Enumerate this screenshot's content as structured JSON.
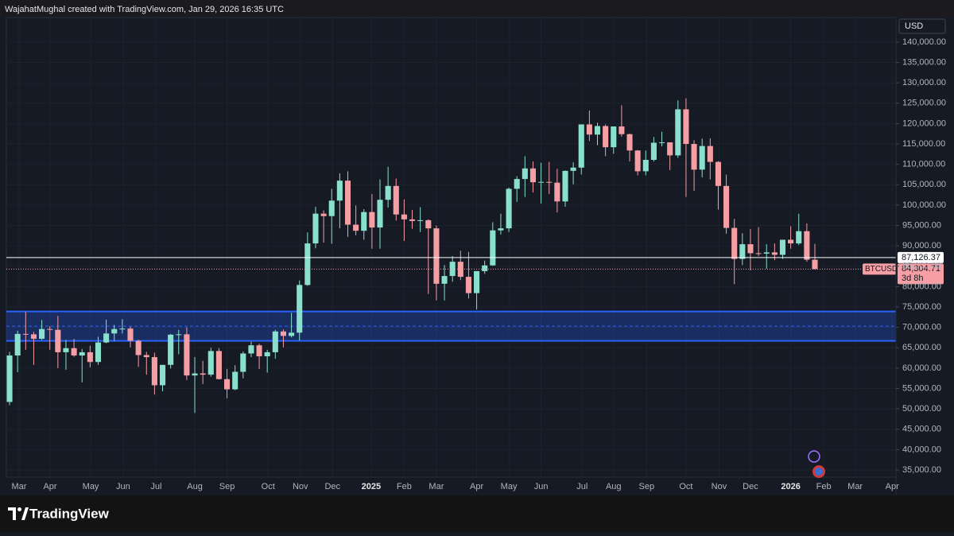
{
  "header": {
    "attribution": "WajahatMughal created with TradingView.com, Jan 29, 2026 16:35 UTC"
  },
  "footer": {
    "brand": "TradingView"
  },
  "chart_data": {
    "type": "candlestick",
    "currency": "USD",
    "up_color": "#89e0cc",
    "down_color": "#f59ea3",
    "grid": true,
    "xlim": [
      -0.4,
      110.07
    ],
    "xticks": [
      {
        "value": 1.18,
        "label": "Mar"
      },
      {
        "value": 5.03,
        "label": "Apr"
      },
      {
        "value": 10.07,
        "label": "May"
      },
      {
        "value": 14.1,
        "label": "Jun"
      },
      {
        "value": 18.2,
        "label": "Jul"
      },
      {
        "value": 23.0,
        "label": "Aug"
      },
      {
        "value": 27.0,
        "label": "Sep"
      },
      {
        "value": 32.1,
        "label": "Oct"
      },
      {
        "value": 36.1,
        "label": "Nov"
      },
      {
        "value": 40.1,
        "label": "Dec"
      },
      {
        "value": 44.9,
        "label": "2025"
      },
      {
        "value": 49.0,
        "label": "Feb"
      },
      {
        "value": 53.0,
        "label": "Mar"
      },
      {
        "value": 58.0,
        "label": "Apr"
      },
      {
        "value": 62.0,
        "label": "May"
      },
      {
        "value": 66.0,
        "label": "Jun"
      },
      {
        "value": 71.1,
        "label": "Jul"
      },
      {
        "value": 75.0,
        "label": "Aug"
      },
      {
        "value": 79.1,
        "label": "Sep"
      },
      {
        "value": 84.0,
        "label": "Oct"
      },
      {
        "value": 88.1,
        "label": "Nov"
      },
      {
        "value": 92.0,
        "label": "Dec"
      },
      {
        "value": 97.0,
        "label": "2026"
      },
      {
        "value": 101.1,
        "label": "Feb"
      },
      {
        "value": 105.0,
        "label": "Mar"
      },
      {
        "value": 109.6,
        "label": "Apr"
      }
    ],
    "ylim": [
      33250,
      146030
    ],
    "yticks": [
      {
        "value": 140000,
        "label": "140,000.00"
      },
      {
        "value": 135000,
        "label": "135,000.00"
      },
      {
        "value": 130000,
        "label": "130,000.00"
      },
      {
        "value": 125000,
        "label": "125,000.00"
      },
      {
        "value": 120000,
        "label": "120,000.00"
      },
      {
        "value": 115000,
        "label": "115,000.00"
      },
      {
        "value": 110000,
        "label": "110,000.00"
      },
      {
        "value": 105000,
        "label": "105,000.00"
      },
      {
        "value": 100000,
        "label": "100,000.00"
      },
      {
        "value": 95000,
        "label": "95,000.00"
      },
      {
        "value": 90000,
        "label": "90,000.00"
      },
      {
        "value": 85000,
        "label": "85,000.00"
      },
      {
        "value": 80000,
        "label": "80,000.00"
      },
      {
        "value": 75000,
        "label": "75,000.00"
      },
      {
        "value": 70000,
        "label": "70,000.00"
      },
      {
        "value": 65000,
        "label": "65,000.00"
      },
      {
        "value": 60000,
        "label": "60,000.00"
      },
      {
        "value": 55000,
        "label": "55,000.00"
      },
      {
        "value": 50000,
        "label": "50,000.00"
      },
      {
        "value": 45000,
        "label": "45,000.00"
      },
      {
        "value": 40000,
        "label": "40,000.00"
      },
      {
        "value": 35000,
        "label": "35,000.00"
      }
    ],
    "zones": [
      {
        "low": 66700,
        "high": 73900,
        "mid": 70300,
        "color": "#2962ff"
      }
    ],
    "price_lines": [
      {
        "value": 87126.37,
        "label": "87,126.37",
        "color": "#ffffff",
        "style": "solid"
      },
      {
        "value": 84304.71,
        "label": "84,304.71",
        "symbol": "BTCUSD",
        "countdown": "3d 8h",
        "color": "#f59ea3",
        "style": "dotted"
      }
    ],
    "open": [
      51700,
      63100,
      68400,
      68300,
      67200,
      69600,
      69400,
      63900,
      64900,
      63100,
      63900,
      61500,
      66300,
      68500,
      69600,
      69700,
      66700,
      63200,
      62700,
      55800,
      60800,
      68200,
      68300,
      58200,
      58700,
      58400,
      64200,
      57300,
      54800,
      59100,
      63600,
      65600,
      62900,
      63900,
      69000,
      67900,
      68700,
      80400,
      90600,
      97900,
      97300,
      101100,
      106000,
      95200,
      93700,
      98300,
      94500,
      101300,
      104700,
      97700,
      96500,
      96100,
      96300,
      94300,
      80700,
      82600,
      86100,
      82400,
      78400,
      83800,
      85200,
      93800,
      94300,
      104000,
      106400,
      109000,
      105600,
      105700,
      105500,
      100900,
      108400,
      109200,
      119800,
      117300,
      119400,
      114200,
      119300,
      117400,
      113400,
      108300,
      111100,
      115300,
      115400,
      112200,
      123500,
      115000,
      108700,
      114500,
      110600,
      104700,
      94400,
      86800,
      90400,
      88200,
      88100,
      88400,
      87800,
      91500,
      90600,
      93600,
      86600
    ],
    "high": [
      64000,
      69200,
      73800,
      68900,
      71800,
      70300,
      72800,
      66900,
      67200,
      64700,
      65500,
      67700,
      71900,
      70600,
      72000,
      70200,
      67000,
      64000,
      63800,
      60800,
      68400,
      69400,
      70000,
      62700,
      61800,
      65000,
      64900,
      59800,
      60700,
      64100,
      66500,
      66000,
      64500,
      69400,
      69500,
      73600,
      81500,
      93300,
      99600,
      98700,
      104000,
      107800,
      108300,
      99900,
      99000,
      102700,
      106300,
      109400,
      106500,
      101400,
      98800,
      99500,
      96500,
      95000,
      85300,
      87500,
      88800,
      88500,
      83800,
      86400,
      95800,
      97900,
      104300,
      107100,
      112000,
      110700,
      110400,
      110600,
      108900,
      108500,
      110500,
      119800,
      123200,
      120200,
      119800,
      119300,
      124500,
      117600,
      113500,
      113400,
      116700,
      118000,
      115400,
      125700,
      126200,
      115900,
      116300,
      116400,
      110800,
      107500,
      96600,
      93100,
      94100,
      94600,
      90400,
      90600,
      91500,
      94800,
      97900,
      95500,
      90500
    ],
    "low": [
      50900,
      59000,
      64500,
      60800,
      66900,
      64500,
      60000,
      59600,
      62800,
      56500,
      60200,
      60800,
      66100,
      66600,
      68500,
      65100,
      60300,
      58400,
      53500,
      54300,
      59900,
      63400,
      57100,
      49000,
      56100,
      57900,
      57200,
      52600,
      54600,
      57500,
      62700,
      59800,
      58900,
      62300,
      65100,
      67500,
      66800,
      80200,
      89400,
      90800,
      90500,
      94300,
      92200,
      92600,
      91500,
      89300,
      89300,
      99400,
      96200,
      91200,
      94200,
      93400,
      78200,
      76600,
      76600,
      81200,
      81600,
      77100,
      74400,
      83100,
      85100,
      92800,
      93400,
      100800,
      102000,
      103100,
      100400,
      102700,
      98200,
      99600,
      105100,
      107500,
      115700,
      114700,
      112000,
      112600,
      116800,
      110700,
      107300,
      107300,
      110700,
      114400,
      108600,
      111600,
      102000,
      103500,
      106800,
      106300,
      98900,
      93000,
      80600,
      85300,
      84000,
      87500,
      84400,
      86500,
      86800,
      89300,
      90200,
      86100,
      84200
    ],
    "close": [
      63100,
      68400,
      68300,
      67200,
      69600,
      69400,
      63900,
      64900,
      63100,
      63900,
      61500,
      66300,
      68500,
      69600,
      69700,
      66700,
      63200,
      62700,
      55800,
      60800,
      68200,
      68300,
      58200,
      58700,
      58400,
      64200,
      57300,
      54800,
      59100,
      63600,
      65600,
      62900,
      63900,
      69000,
      67900,
      68700,
      80400,
      90600,
      97900,
      97300,
      101100,
      106000,
      95200,
      93700,
      98300,
      94500,
      101300,
      104700,
      97700,
      96500,
      96100,
      96300,
      94300,
      80700,
      82600,
      86100,
      82400,
      78400,
      83800,
      85200,
      93800,
      94300,
      104000,
      106400,
      109000,
      105600,
      105700,
      105500,
      100900,
      108400,
      109200,
      119800,
      117300,
      119400,
      114200,
      119300,
      117400,
      113400,
      108300,
      111100,
      115300,
      115400,
      112200,
      123500,
      115000,
      108700,
      114500,
      110600,
      104700,
      94400,
      86800,
      90400,
      88200,
      88100,
      88400,
      87800,
      91500,
      90600,
      93600,
      86600,
      84304.71
    ]
  }
}
